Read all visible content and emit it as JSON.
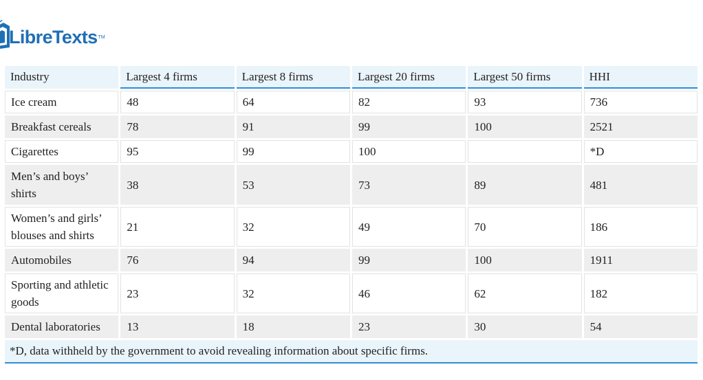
{
  "logo": {
    "text": "LibreTexts",
    "tm": "TM",
    "color": "#1f6fb5"
  },
  "table": {
    "headers": [
      "Industry",
      "Largest 4 firms",
      "Largest 8 firms",
      "Largest 20 firms",
      "Largest 50 firms",
      "HHI"
    ],
    "rows": [
      [
        "Ice cream",
        "48",
        "64",
        "82",
        "93",
        "736"
      ],
      [
        "Breakfast cereals",
        "78",
        "91",
        "99",
        "100",
        "2521"
      ],
      [
        "Cigarettes",
        "95",
        "99",
        "100",
        "",
        "*D"
      ],
      [
        "Men’s and boys’ shirts",
        "38",
        "53",
        "73",
        "89",
        "481"
      ],
      [
        "Women’s and girls’ blouses and shirts",
        "21",
        "32",
        "49",
        "70",
        "186"
      ],
      [
        "Automobiles",
        "76",
        "94",
        "99",
        "100",
        "1911"
      ],
      [
        "Sporting and athletic goods",
        "23",
        "32",
        "46",
        "62",
        "182"
      ],
      [
        "Dental laboratories",
        "13",
        "18",
        "23",
        "30",
        "54"
      ]
    ],
    "footnote": "*D, data withheld by the government to avoid revealing information about specific firms."
  },
  "colors": {
    "header_bg": "#e9f4fb",
    "accent_border": "#2b8ed6",
    "striped_row_bg": "#eeeeee"
  }
}
